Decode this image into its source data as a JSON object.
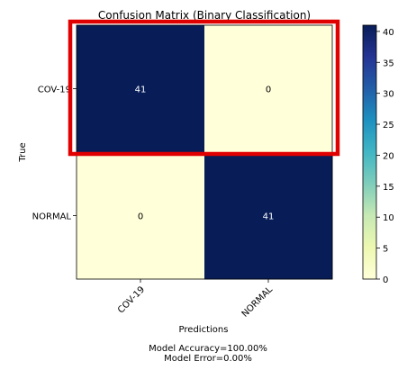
{
  "chart_data": {
    "type": "heatmap",
    "title": "Confusion Matrix (Binary Classification)",
    "xlabel": "Predictions",
    "ylabel": "True",
    "x_categories": [
      "COV-19",
      "NORMAL"
    ],
    "y_categories": [
      "COV-19",
      "NORMAL"
    ],
    "values": [
      [
        41,
        0
      ],
      [
        0,
        41
      ]
    ],
    "colormap": "YlGnBu",
    "colorbar": {
      "range": [
        0,
        41
      ],
      "ticks": [
        0,
        5,
        10,
        15,
        20,
        25,
        30,
        35,
        40
      ]
    },
    "colors": {
      "high": "#081d58",
      "low": "#ffffd9",
      "highlight_box": "#e00000"
    },
    "annotations": {
      "highlight": "red rectangle around the COV-19 row"
    }
  },
  "footer": {
    "accuracy": "Model Accuracy=100.00%",
    "error": "Model Error=0.00%"
  }
}
